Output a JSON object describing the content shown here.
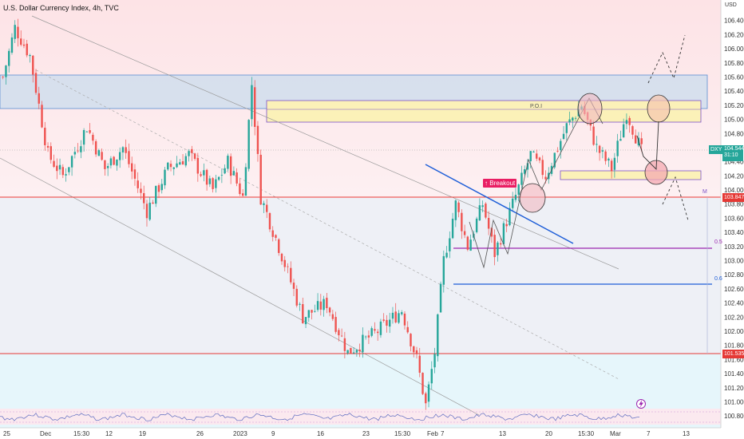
{
  "header": {
    "title": "U.S. Dollar Currency Index, 4h, TVC"
  },
  "price_axis": {
    "currency": "USD",
    "ticks": [
      "106.400",
      "106.200",
      "106.000",
      "105.800",
      "105.600",
      "105.400",
      "105.200",
      "105.000",
      "104.800",
      "104.600",
      "104.400",
      "104.200",
      "104.000",
      "103.800",
      "103.600",
      "103.400",
      "103.200",
      "103.000",
      "102.800",
      "102.600",
      "102.400",
      "102.200",
      "102.000",
      "101.800",
      "101.600",
      "101.400",
      "101.200",
      "101.000",
      "100.800"
    ]
  },
  "time_axis": {
    "ticks": [
      "25",
      "Dec",
      "15:30",
      "12",
      "19",
      "26",
      "2023",
      "9",
      "16",
      "23",
      "15:30",
      "Feb",
      "7",
      "13",
      "20",
      "15:30",
      "Mar",
      "7",
      "13"
    ]
  },
  "current": {
    "symbol": "DXY",
    "price": "104.544",
    "countdown": "31:10"
  },
  "levels": {
    "upper_red": "103.847",
    "lower_red": "101.535"
  },
  "annotations": {
    "poi": "P.O.I",
    "breakout": "↑ Breakout",
    "fib_05": "0.5",
    "fib_06": "0.6",
    "m_label": "M"
  },
  "colors": {
    "up": "#26a69a",
    "down": "#ef5350",
    "blue_line": "#1e5ed8",
    "purple_line": "#9c27b0",
    "red_level": "#e53935"
  },
  "chart_data": {
    "type": "candlestick",
    "symbol": "DXY",
    "timeframe": "4h",
    "ylim": [
      100.7,
      106.6
    ],
    "trend_waypoints": [
      {
        "t": 0,
        "close": 105.6
      },
      {
        "t": 4,
        "close": 106.3
      },
      {
        "t": 9,
        "close": 105.9
      },
      {
        "t": 15,
        "close": 104.5
      },
      {
        "t": 20,
        "close": 104.2
      },
      {
        "t": 28,
        "close": 104.9
      },
      {
        "t": 34,
        "close": 104.3
      },
      {
        "t": 40,
        "close": 104.6
      },
      {
        "t": 48,
        "close": 103.7
      },
      {
        "t": 55,
        "close": 104.3
      },
      {
        "t": 62,
        "close": 104.5
      },
      {
        "t": 70,
        "close": 104.0
      },
      {
        "t": 75,
        "close": 104.4
      },
      {
        "t": 80,
        "close": 103.9
      },
      {
        "t": 83,
        "close": 105.5
      },
      {
        "t": 86,
        "close": 103.9
      },
      {
        "t": 92,
        "close": 103.2
      },
      {
        "t": 100,
        "close": 102.2
      },
      {
        "t": 108,
        "close": 102.4
      },
      {
        "t": 115,
        "close": 101.7
      },
      {
        "t": 125,
        "close": 102.0
      },
      {
        "t": 133,
        "close": 102.3
      },
      {
        "t": 138,
        "close": 101.6
      },
      {
        "t": 141,
        "close": 100.95
      },
      {
        "t": 144,
        "close": 101.7
      },
      {
        "t": 147,
        "close": 103.0
      },
      {
        "t": 151,
        "close": 103.8
      },
      {
        "t": 155,
        "close": 103.2
      },
      {
        "t": 160,
        "close": 103.8
      },
      {
        "t": 164,
        "close": 103.1
      },
      {
        "t": 170,
        "close": 103.8
      },
      {
        "t": 176,
        "close": 104.5
      },
      {
        "t": 181,
        "close": 104.2
      },
      {
        "t": 188,
        "close": 104.9
      },
      {
        "t": 193,
        "close": 105.2
      },
      {
        "t": 198,
        "close": 104.6
      },
      {
        "t": 203,
        "close": 104.3
      },
      {
        "t": 208,
        "close": 105.1
      },
      {
        "t": 213,
        "close": 104.544
      }
    ]
  }
}
